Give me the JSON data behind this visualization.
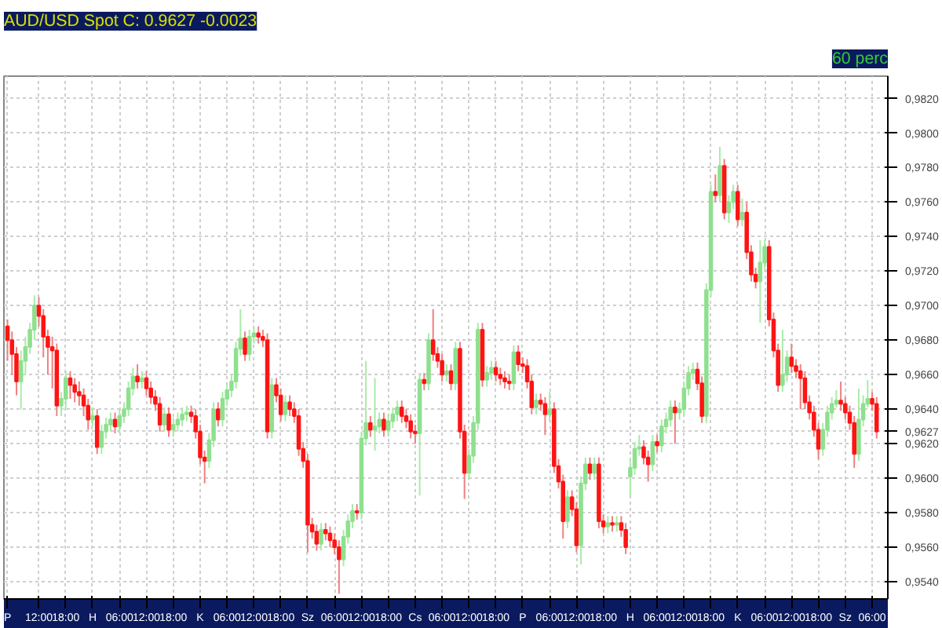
{
  "chart_data": {
    "type": "candlestick",
    "title": "AUD/USD Spot C: 0.9627 -0.0023",
    "subtitle": "60 perc",
    "categories": [
      "P",
      null,
      null,
      null,
      null,
      null,
      null,
      "12:00",
      null,
      null,
      null,
      null,
      null,
      "18:00",
      null,
      null,
      null,
      null,
      null,
      "H",
      null,
      null,
      null,
      null,
      null,
      "06:00",
      null,
      null,
      null,
      null,
      null,
      "12:00",
      null,
      null,
      null,
      null,
      null,
      "18:00",
      null,
      null,
      null,
      null,
      null,
      "K",
      null,
      null,
      null,
      null,
      null,
      "06:00",
      null,
      null,
      null,
      null,
      null,
      "12:00",
      null,
      null,
      null,
      null,
      null,
      "18:00",
      null,
      null,
      null,
      null,
      null,
      "Sz",
      null,
      null,
      null,
      null,
      null,
      "06:00",
      null,
      null,
      null,
      null,
      null,
      "12:00",
      null,
      null,
      null,
      null,
      null,
      "18:00",
      null,
      null,
      null,
      null,
      null,
      "Cs",
      null,
      null,
      null,
      null,
      null,
      "06:00",
      null,
      null,
      null,
      null,
      null,
      "12:00",
      null,
      null,
      null,
      null,
      null,
      "18:00",
      null,
      null,
      null,
      null,
      null,
      "P",
      null,
      null,
      null,
      null,
      null,
      "06:00",
      null,
      null,
      null,
      null,
      null,
      "12:00",
      null,
      null,
      null,
      null,
      null,
      "18:00",
      null,
      null,
      null,
      null,
      null,
      "H",
      null,
      null,
      null,
      null,
      null,
      "06:00",
      null,
      null,
      null,
      null,
      null,
      "12:00",
      null,
      null,
      null,
      null,
      null,
      "18:00",
      null,
      null,
      null,
      null,
      null,
      "K",
      null,
      null,
      null,
      null,
      null,
      "06:00",
      null,
      null,
      null,
      null,
      null,
      "12:00",
      null,
      null,
      null,
      null,
      null,
      "18:00",
      null,
      null,
      null,
      null,
      null,
      "Sz",
      null,
      null,
      null,
      null,
      null,
      "06:00",
      null
    ],
    "ohlc": [
      [
        0.9688,
        0.9692,
        0.9668,
        0.968
      ],
      [
        0.968,
        0.9685,
        0.966,
        0.9672
      ],
      [
        0.9672,
        0.9676,
        0.9648,
        0.9656
      ],
      [
        0.9656,
        0.9674,
        0.964,
        0.9668
      ],
      [
        0.9668,
        0.9682,
        0.966,
        0.9676
      ],
      [
        0.9676,
        0.969,
        0.9672,
        0.9686
      ],
      [
        0.9686,
        0.9706,
        0.968,
        0.97
      ],
      [
        0.97,
        0.9705,
        0.9688,
        0.9694
      ],
      [
        0.9694,
        0.9698,
        0.967,
        0.9682
      ],
      [
        0.9682,
        0.9686,
        0.966,
        0.9676
      ],
      [
        0.9676,
        0.9682,
        0.9652,
        0.9674
      ],
      [
        0.9674,
        0.9678,
        0.9636,
        0.9642
      ],
      [
        0.9642,
        0.965,
        0.9636,
        0.9646
      ],
      [
        0.9646,
        0.9662,
        0.964,
        0.9658
      ],
      [
        0.9658,
        0.9662,
        0.9646,
        0.9654
      ],
      [
        0.9654,
        0.9658,
        0.9644,
        0.965
      ],
      [
        0.965,
        0.9656,
        0.9642,
        0.9648
      ],
      [
        0.9648,
        0.9652,
        0.9636,
        0.9642
      ],
      [
        0.9642,
        0.9646,
        0.9628,
        0.9634
      ],
      [
        0.9634,
        0.9641,
        0.963,
        0.9636
      ],
      [
        0.9636,
        0.964,
        0.9614,
        0.9618
      ],
      [
        0.9618,
        0.9631,
        0.9614,
        0.9627
      ],
      [
        0.9627,
        0.9635,
        0.9623,
        0.9631
      ],
      [
        0.9631,
        0.9638,
        0.9627,
        0.9634
      ],
      [
        0.9634,
        0.9638,
        0.9626,
        0.963
      ],
      [
        0.963,
        0.964,
        0.9626,
        0.9636
      ],
      [
        0.9636,
        0.9644,
        0.9632,
        0.964
      ],
      [
        0.964,
        0.9656,
        0.9636,
        0.9652
      ],
      [
        0.9652,
        0.9664,
        0.9648,
        0.9659
      ],
      [
        0.9659,
        0.9666,
        0.9652,
        0.9656
      ],
      [
        0.9656,
        0.9662,
        0.9652,
        0.9658
      ],
      [
        0.9658,
        0.9662,
        0.9648,
        0.9652
      ],
      [
        0.9652,
        0.9656,
        0.9643,
        0.9647
      ],
      [
        0.9647,
        0.9651,
        0.9639,
        0.9643
      ],
      [
        0.9643,
        0.9647,
        0.9627,
        0.9631
      ],
      [
        0.9631,
        0.9641,
        0.9627,
        0.9637
      ],
      [
        0.9637,
        0.9641,
        0.9624,
        0.9628
      ],
      [
        0.9628,
        0.9635,
        0.9624,
        0.9631
      ],
      [
        0.9631,
        0.9638,
        0.9627,
        0.9634
      ],
      [
        0.9634,
        0.9641,
        0.963,
        0.9637
      ],
      [
        0.9637,
        0.9642,
        0.9633,
        0.9638
      ],
      [
        0.9638,
        0.9642,
        0.9632,
        0.9636
      ],
      [
        0.9636,
        0.964,
        0.9623,
        0.9627
      ],
      [
        0.9627,
        0.9631,
        0.9608,
        0.9612
      ],
      [
        0.9612,
        0.9616,
        0.9597,
        0.961
      ],
      [
        0.961,
        0.9626,
        0.9606,
        0.9622
      ],
      [
        0.9622,
        0.9644,
        0.9618,
        0.964
      ],
      [
        0.964,
        0.9644,
        0.963,
        0.9634
      ],
      [
        0.9634,
        0.965,
        0.963,
        0.9646
      ],
      [
        0.9646,
        0.9655,
        0.9642,
        0.9651
      ],
      [
        0.9651,
        0.966,
        0.9647,
        0.9656
      ],
      [
        0.9656,
        0.9679,
        0.9652,
        0.9675
      ],
      [
        0.9675,
        0.9698,
        0.9671,
        0.9681
      ],
      [
        0.9681,
        0.9685,
        0.9668,
        0.9672
      ],
      [
        0.9672,
        0.9686,
        0.9668,
        0.9682
      ],
      [
        0.9682,
        0.9688,
        0.9678,
        0.9684
      ],
      [
        0.9684,
        0.9688,
        0.9678,
        0.9682
      ],
      [
        0.9682,
        0.9686,
        0.9676,
        0.968
      ],
      [
        0.968,
        0.9684,
        0.9623,
        0.9627
      ],
      [
        0.9627,
        0.9658,
        0.9623,
        0.9654
      ],
      [
        0.9654,
        0.9658,
        0.9644,
        0.9648
      ],
      [
        0.9648,
        0.9652,
        0.9633,
        0.9637
      ],
      [
        0.9637,
        0.9648,
        0.9633,
        0.9644
      ],
      [
        0.9644,
        0.9648,
        0.9636,
        0.964
      ],
      [
        0.964,
        0.9644,
        0.9632,
        0.9636
      ],
      [
        0.9636,
        0.964,
        0.9613,
        0.9617
      ],
      [
        0.9617,
        0.9621,
        0.9606,
        0.961
      ],
      [
        0.961,
        0.9614,
        0.9557,
        0.9573
      ],
      [
        0.9573,
        0.9577,
        0.9565,
        0.9569
      ],
      [
        0.9569,
        0.9573,
        0.9558,
        0.9562
      ],
      [
        0.9562,
        0.9574,
        0.9558,
        0.957
      ],
      [
        0.957,
        0.9574,
        0.9564,
        0.9568
      ],
      [
        0.9568,
        0.9572,
        0.956,
        0.9564
      ],
      [
        0.9564,
        0.9568,
        0.9556,
        0.956
      ],
      [
        0.956,
        0.9564,
        0.9533,
        0.9553
      ],
      [
        0.9553,
        0.957,
        0.9549,
        0.9566
      ],
      [
        0.9566,
        0.9579,
        0.9562,
        0.9575
      ],
      [
        0.9575,
        0.9585,
        0.9571,
        0.9581
      ],
      [
        0.9581,
        0.9585,
        0.9576,
        0.958
      ],
      [
        0.958,
        0.9627,
        0.9576,
        0.9623
      ],
      [
        0.9623,
        0.9668,
        0.9619,
        0.9632
      ],
      [
        0.9632,
        0.9636,
        0.9624,
        0.9628
      ],
      [
        0.9628,
        0.9658,
        0.9616,
        0.963
      ],
      [
        0.963,
        0.9638,
        0.9626,
        0.9634
      ],
      [
        0.9634,
        0.9638,
        0.9624,
        0.9628
      ],
      [
        0.9628,
        0.9637,
        0.9624,
        0.9633
      ],
      [
        0.9633,
        0.9641,
        0.9629,
        0.9637
      ],
      [
        0.9637,
        0.9645,
        0.9633,
        0.9641
      ],
      [
        0.9641,
        0.9645,
        0.9632,
        0.9636
      ],
      [
        0.9636,
        0.964,
        0.9629,
        0.9633
      ],
      [
        0.9633,
        0.9637,
        0.9623,
        0.9627
      ],
      [
        0.9627,
        0.9631,
        0.962,
        0.9626
      ],
      [
        0.9626,
        0.9661,
        0.959,
        0.9657
      ],
      [
        0.9657,
        0.9661,
        0.9651,
        0.9655
      ],
      [
        0.9655,
        0.9684,
        0.9651,
        0.968
      ],
      [
        0.968,
        0.9698,
        0.9668,
        0.9672
      ],
      [
        0.9672,
        0.9676,
        0.9664,
        0.9668
      ],
      [
        0.9668,
        0.9672,
        0.9656,
        0.966
      ],
      [
        0.966,
        0.9666,
        0.9656,
        0.9662
      ],
      [
        0.9662,
        0.9666,
        0.9651,
        0.9655
      ],
      [
        0.9655,
        0.9679,
        0.9651,
        0.9675
      ],
      [
        0.9675,
        0.9679,
        0.9623,
        0.9627
      ],
      [
        0.9627,
        0.9631,
        0.9588,
        0.9603
      ],
      [
        0.9603,
        0.9617,
        0.9599,
        0.9613
      ],
      [
        0.9613,
        0.9636,
        0.9609,
        0.9632
      ],
      [
        0.9632,
        0.969,
        0.9628,
        0.9686
      ],
      [
        0.9686,
        0.969,
        0.9653,
        0.9657
      ],
      [
        0.9657,
        0.9665,
        0.9653,
        0.9661
      ],
      [
        0.9661,
        0.9668,
        0.9657,
        0.9664
      ],
      [
        0.9664,
        0.9668,
        0.9656,
        0.966
      ],
      [
        0.966,
        0.9664,
        0.9654,
        0.9658
      ],
      [
        0.9658,
        0.9662,
        0.9652,
        0.9656
      ],
      [
        0.9656,
        0.966,
        0.9651,
        0.9655
      ],
      [
        0.9655,
        0.9677,
        0.9651,
        0.9673
      ],
      [
        0.9673,
        0.9677,
        0.9662,
        0.9666
      ],
      [
        0.9666,
        0.967,
        0.9661,
        0.9665
      ],
      [
        0.9665,
        0.9669,
        0.9652,
        0.9656
      ],
      [
        0.9656,
        0.966,
        0.9637,
        0.9641
      ],
      [
        0.9641,
        0.9649,
        0.9637,
        0.9645
      ],
      [
        0.9645,
        0.9649,
        0.9639,
        0.9643
      ],
      [
        0.9643,
        0.9647,
        0.9625,
        0.9637
      ],
      [
        0.9637,
        0.965,
        0.9633,
        0.964
      ],
      [
        0.964,
        0.9644,
        0.9603,
        0.9607
      ],
      [
        0.9607,
        0.9611,
        0.9594,
        0.9598
      ],
      [
        0.9598,
        0.9602,
        0.9565,
        0.9575
      ],
      [
        0.9575,
        0.9593,
        0.9571,
        0.9589
      ],
      [
        0.9589,
        0.9593,
        0.9578,
        0.9582
      ],
      [
        0.9582,
        0.9586,
        0.9557,
        0.9561
      ],
      [
        0.9561,
        0.9601,
        0.955,
        0.9597
      ],
      [
        0.9597,
        0.9612,
        0.9593,
        0.9608
      ],
      [
        0.9608,
        0.9612,
        0.9599,
        0.9603
      ],
      [
        0.9603,
        0.9612,
        0.9599,
        0.9608
      ],
      [
        0.9608,
        0.9612,
        0.9571,
        0.9575
      ],
      [
        0.9575,
        0.9579,
        0.9568,
        0.9572
      ],
      [
        0.9572,
        0.9578,
        0.9568,
        0.9574
      ],
      [
        0.9574,
        0.9578,
        0.9569,
        0.9573
      ],
      [
        0.9573,
        0.9578,
        0.9569,
        0.9574
      ],
      [
        0.9574,
        0.9578,
        0.9566,
        0.957
      ],
      [
        0.957,
        0.9574,
        0.9556,
        0.956
      ],
      [
        0.9601,
        0.961,
        0.959,
        0.9606
      ],
      [
        0.9606,
        0.9621,
        0.9602,
        0.9617
      ],
      [
        0.9617,
        0.9625,
        0.9613,
        0.9618
      ],
      [
        0.9618,
        0.9622,
        0.9608,
        0.9612
      ],
      [
        0.9612,
        0.9616,
        0.9598,
        0.9608
      ],
      [
        0.9608,
        0.9625,
        0.9604,
        0.9621
      ],
      [
        0.9621,
        0.9625,
        0.9615,
        0.9619
      ],
      [
        0.9619,
        0.9634,
        0.9615,
        0.963
      ],
      [
        0.963,
        0.9638,
        0.9626,
        0.9634
      ],
      [
        0.9634,
        0.9645,
        0.963,
        0.9641
      ],
      [
        0.9641,
        0.9645,
        0.962,
        0.9638
      ],
      [
        0.9638,
        0.9644,
        0.9634,
        0.964
      ],
      [
        0.964,
        0.9656,
        0.9636,
        0.9652
      ],
      [
        0.9652,
        0.9665,
        0.9648,
        0.9661
      ],
      [
        0.9661,
        0.9667,
        0.9657,
        0.9663
      ],
      [
        0.9663,
        0.9667,
        0.9651,
        0.9655
      ],
      [
        0.9655,
        0.9659,
        0.9632,
        0.9636
      ],
      [
        0.9636,
        0.9713,
        0.9632,
        0.9709
      ],
      [
        0.9709,
        0.977,
        0.9705,
        0.9766
      ],
      [
        0.9766,
        0.9776,
        0.976,
        0.9764
      ],
      [
        0.9764,
        0.9792,
        0.976,
        0.9781
      ],
      [
        0.9781,
        0.9785,
        0.975,
        0.9754
      ],
      [
        0.9754,
        0.9764,
        0.9748,
        0.976
      ],
      [
        0.976,
        0.977,
        0.9756,
        0.9766
      ],
      [
        0.9766,
        0.977,
        0.9746,
        0.975
      ],
      [
        0.975,
        0.9762,
        0.9746,
        0.9754
      ],
      [
        0.9754,
        0.976,
        0.9727,
        0.9731
      ],
      [
        0.9731,
        0.9735,
        0.9714,
        0.9718
      ],
      [
        0.9718,
        0.9722,
        0.971,
        0.9714
      ],
      [
        0.9714,
        0.9738,
        0.969,
        0.9725
      ],
      [
        0.9725,
        0.9738,
        0.9721,
        0.9734
      ],
      [
        0.9734,
        0.9738,
        0.9688,
        0.9692
      ],
      [
        0.9692,
        0.9696,
        0.967,
        0.9674
      ],
      [
        0.9674,
        0.9678,
        0.965,
        0.9654
      ],
      [
        0.9654,
        0.9686,
        0.965,
        0.966
      ],
      [
        0.966,
        0.9674,
        0.9656,
        0.967
      ],
      [
        0.967,
        0.9678,
        0.9661,
        0.9665
      ],
      [
        0.9665,
        0.9669,
        0.9658,
        0.9662
      ],
      [
        0.9662,
        0.9666,
        0.964,
        0.9658
      ],
      [
        0.9658,
        0.9662,
        0.964,
        0.9644
      ],
      [
        0.9644,
        0.9648,
        0.9634,
        0.9638
      ],
      [
        0.9638,
        0.9642,
        0.9624,
        0.9628
      ],
      [
        0.9628,
        0.9632,
        0.9611,
        0.9617
      ],
      [
        0.9617,
        0.9632,
        0.9613,
        0.9628
      ],
      [
        0.9628,
        0.9642,
        0.9624,
        0.9638
      ],
      [
        0.9638,
        0.9647,
        0.9634,
        0.9643
      ],
      [
        0.9643,
        0.9651,
        0.9641,
        0.9645
      ],
      [
        0.9645,
        0.9656,
        0.9639,
        0.9643
      ],
      [
        0.9643,
        0.9647,
        0.9634,
        0.9638
      ],
      [
        0.9638,
        0.9642,
        0.9628,
        0.9632
      ],
      [
        0.9632,
        0.9636,
        0.9606,
        0.9614
      ],
      [
        0.9614,
        0.9652,
        0.961,
        0.9634
      ],
      [
        0.9634,
        0.9648,
        0.963,
        0.9643
      ],
      [
        0.9643,
        0.9657,
        0.9641,
        0.9646
      ],
      [
        0.9646,
        0.965,
        0.9639,
        0.9643
      ],
      [
        0.9643,
        0.9647,
        0.9623,
        0.9627
      ]
    ],
    "ylim": [
      0.953,
      0.9833
    ],
    "yticks": [
      {
        "value": 0.954,
        "label": "0,9540"
      },
      {
        "value": 0.956,
        "label": "0,9560"
      },
      {
        "value": 0.958,
        "label": "0,9580"
      },
      {
        "value": 0.96,
        "label": "0,9600"
      },
      {
        "value": 0.962,
        "label": "0,9620"
      },
      {
        "value": 0.9627,
        "label": "0,9627"
      },
      {
        "value": 0.964,
        "label": "0,9640"
      },
      {
        "value": 0.966,
        "label": "0,9660"
      },
      {
        "value": 0.968,
        "label": "0,9680"
      },
      {
        "value": 0.97,
        "label": "0,9700"
      },
      {
        "value": 0.972,
        "label": "0,9720"
      },
      {
        "value": 0.974,
        "label": "0,9740"
      },
      {
        "value": 0.976,
        "label": "0,9760"
      },
      {
        "value": 0.978,
        "label": "0,9780"
      },
      {
        "value": 0.98,
        "label": "0,9800"
      },
      {
        "value": 0.982,
        "label": "0,9820"
      }
    ],
    "grid": true
  }
}
